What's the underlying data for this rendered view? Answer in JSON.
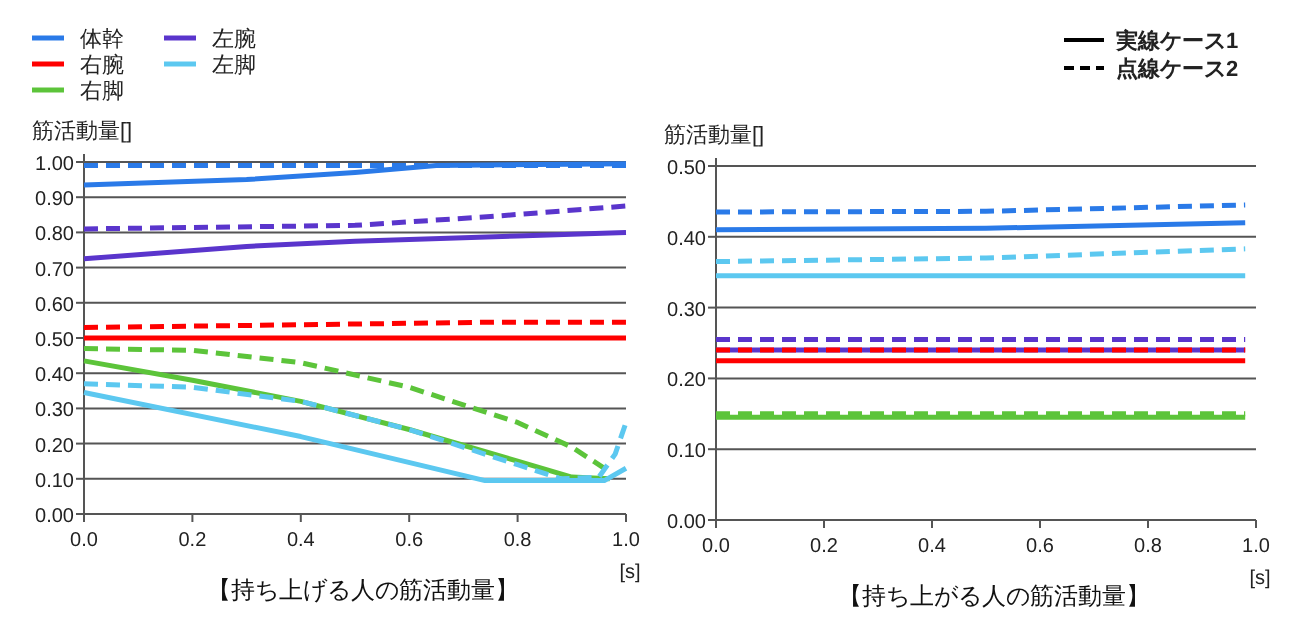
{
  "chart_data": [
    {
      "type": "line",
      "title": "【持ち上げる人の筋活動量】",
      "xlabel": "[s]",
      "ylabel": "筋活動量[]",
      "grid": "y",
      "legend": "top left",
      "xlim": [
        0,
        1
      ],
      "xticks": [
        {
          "value": 0,
          "label": "0.0"
        },
        {
          "value": 0.2,
          "label": "0.2"
        },
        {
          "value": 0.4,
          "label": "0.4"
        },
        {
          "value": 0.6,
          "label": "0.6"
        },
        {
          "value": 0.8,
          "label": "0.8"
        },
        {
          "value": 1,
          "label": "1.0"
        }
      ],
      "ylim": [
        0,
        1
      ],
      "yticks": [
        {
          "value": 0,
          "label": "0.00"
        },
        {
          "value": 0.1,
          "label": "0.10"
        },
        {
          "value": 0.2,
          "label": "0.20"
        },
        {
          "value": 0.3,
          "label": "0.30"
        },
        {
          "value": 0.4,
          "label": "0.40"
        },
        {
          "value": 0.5,
          "label": "0.50"
        },
        {
          "value": 0.6,
          "label": "0.60"
        },
        {
          "value": 0.7,
          "label": "0.70"
        },
        {
          "value": 0.8,
          "label": "0.80"
        },
        {
          "value": 0.9,
          "label": "0.90"
        },
        {
          "value": 1,
          "label": "1.00"
        }
      ],
      "series": [
        {
          "name": "体幹",
          "color": "#2a7ae8",
          "line_style": "solid",
          "x": [
            0,
            0.3,
            0.5,
            0.65,
            1
          ],
          "values": [
            0.935,
            0.95,
            0.97,
            0.99,
            0.995
          ]
        },
        {
          "name": "右腕",
          "color": "#ff0000",
          "line_style": "solid",
          "x": [
            0,
            1
          ],
          "values": [
            0.5,
            0.5
          ]
        },
        {
          "name": "右脚",
          "color": "#5cc43a",
          "line_style": "solid",
          "x": [
            0,
            0.2,
            0.4,
            0.6,
            0.8,
            0.9,
            0.97
          ],
          "values": [
            0.435,
            0.38,
            0.32,
            0.24,
            0.15,
            0.105,
            0.1
          ]
        },
        {
          "name": "左腕",
          "color": "#5a35cc",
          "line_style": "solid",
          "x": [
            0,
            0.3,
            0.5,
            0.8,
            1
          ],
          "values": [
            0.725,
            0.76,
            0.775,
            0.79,
            0.8
          ]
        },
        {
          "name": "左脚",
          "color": "#5cc8f0",
          "line_style": "solid",
          "x": [
            0,
            0.4,
            0.74,
            0.96,
            1
          ],
          "values": [
            0.345,
            0.22,
            0.095,
            0.095,
            0.13
          ]
        },
        {
          "color": "#2a7ae8",
          "line_style": "dashed",
          "x": [
            0,
            1
          ],
          "values": [
            0.99,
            0.99
          ]
        },
        {
          "color": "#ff0000",
          "line_style": "dashed",
          "x": [
            0,
            0.27,
            0.76,
            1
          ],
          "values": [
            0.53,
            0.535,
            0.545,
            0.545
          ]
        },
        {
          "color": "#5cc43a",
          "line_style": "dashed",
          "x": [
            0,
            0.2,
            0.4,
            0.6,
            0.8,
            0.9,
            0.97
          ],
          "values": [
            0.47,
            0.465,
            0.43,
            0.36,
            0.26,
            0.19,
            0.12
          ]
        },
        {
          "color": "#5a35cc",
          "line_style": "dashed",
          "x": [
            0,
            0.5,
            0.75,
            1
          ],
          "values": [
            0.81,
            0.82,
            0.845,
            0.875
          ]
        },
        {
          "color": "#5cc8f0",
          "line_style": "dashed",
          "x": [
            0,
            0.2,
            0.4,
            0.6,
            0.8,
            0.88,
            0.95,
            0.98,
            1
          ],
          "values": [
            0.37,
            0.36,
            0.32,
            0.24,
            0.14,
            0.1,
            0.105,
            0.17,
            0.26
          ]
        }
      ]
    },
    {
      "type": "line",
      "title": "【持ち上がる人の筋活動量】",
      "xlabel": "[s]",
      "ylabel": "筋活動量[]",
      "grid": "y",
      "annotations": [
        "実線ケース1",
        "点線ケース2"
      ],
      "xlim": [
        0,
        1
      ],
      "xticks": [
        {
          "value": 0,
          "label": "0.0"
        },
        {
          "value": 0.2,
          "label": "0.2"
        },
        {
          "value": 0.4,
          "label": "0.4"
        },
        {
          "value": 0.6,
          "label": "0.6"
        },
        {
          "value": 0.8,
          "label": "0.8"
        },
        {
          "value": 1,
          "label": "1.0"
        }
      ],
      "ylim": [
        0,
        0.5
      ],
      "yticks": [
        {
          "value": 0,
          "label": "0.00"
        },
        {
          "value": 0.1,
          "label": "0.10"
        },
        {
          "value": 0.2,
          "label": "0.20"
        },
        {
          "value": 0.3,
          "label": "0.30"
        },
        {
          "value": 0.4,
          "label": "0.40"
        },
        {
          "value": 0.5,
          "label": "0.50"
        }
      ],
      "series": [
        {
          "color": "#2a7ae8",
          "line_style": "solid",
          "x": [
            0,
            0.5,
            0.98
          ],
          "values": [
            0.41,
            0.412,
            0.42
          ]
        },
        {
          "color": "#ff0000",
          "line_style": "solid",
          "x": [
            0,
            0.98
          ],
          "values": [
            0.225,
            0.225
          ]
        },
        {
          "color": "#5cc43a",
          "line_style": "solid",
          "x": [
            0,
            0.98
          ],
          "values": [
            0.145,
            0.145
          ]
        },
        {
          "color": "#5a35cc",
          "line_style": "solid",
          "x": [
            0,
            0.98
          ],
          "values": [
            0.24,
            0.24
          ]
        },
        {
          "color": "#5cc8f0",
          "line_style": "solid",
          "x": [
            0,
            0.98
          ],
          "values": [
            0.345,
            0.345
          ]
        },
        {
          "color": "#2a7ae8",
          "line_style": "dashed",
          "x": [
            0,
            0.5,
            0.98
          ],
          "values": [
            0.435,
            0.436,
            0.445
          ]
        },
        {
          "color": "#ff0000",
          "line_style": "dashed",
          "x": [
            0,
            0.98
          ],
          "values": [
            0.24,
            0.24
          ]
        },
        {
          "color": "#5cc43a",
          "line_style": "dashed",
          "x": [
            0,
            0.98
          ],
          "values": [
            0.15,
            0.15
          ]
        },
        {
          "color": "#5a35cc",
          "line_style": "dashed",
          "x": [
            0,
            0.98
          ],
          "values": [
            0.255,
            0.255
          ]
        },
        {
          "color": "#5cc8f0",
          "line_style": "dashed",
          "x": [
            0,
            0.5,
            0.98
          ],
          "values": [
            0.365,
            0.37,
            0.383
          ]
        }
      ]
    }
  ]
}
